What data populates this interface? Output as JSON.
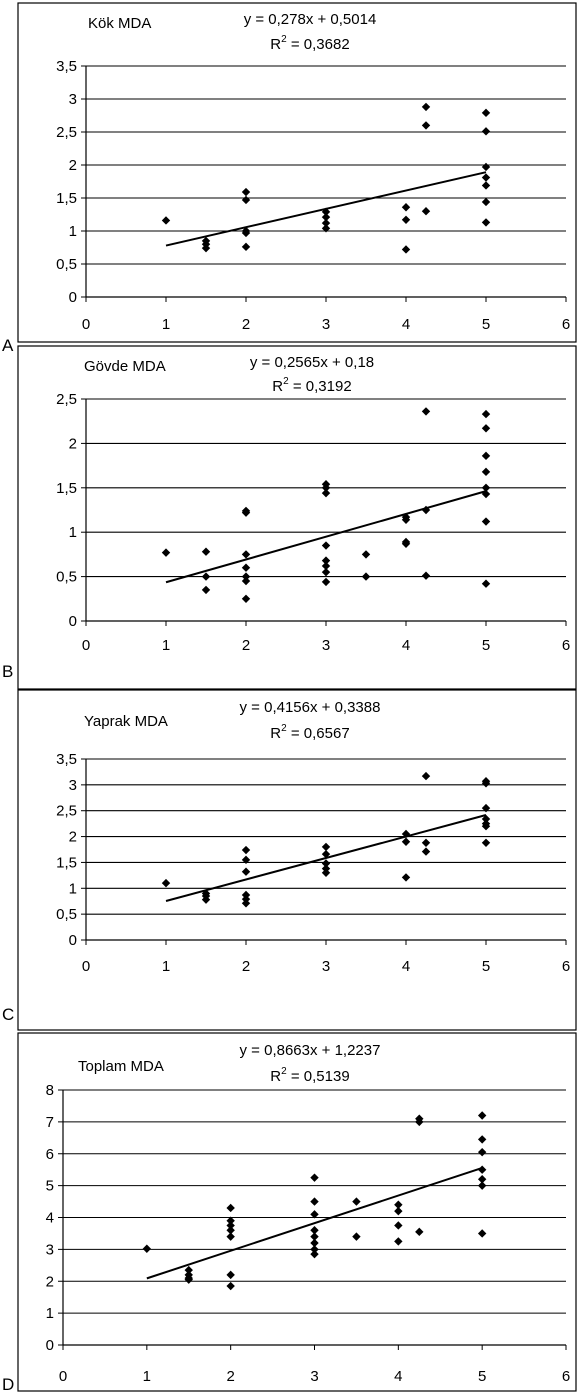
{
  "chart_data": [
    {
      "type": "scatter",
      "panel_label": "A",
      "title": "Kök MDA",
      "equation": "y = 0,278x + 0,5014",
      "r2_prefix": "R",
      "r2_value": " = 0,3682",
      "xlim": [
        0,
        6
      ],
      "ylim": [
        0,
        3.5
      ],
      "x_ticks": [
        0,
        1,
        2,
        3,
        4,
        5,
        6
      ],
      "x_tick_labels": [
        "0",
        "1",
        "2",
        "3",
        "4",
        "5",
        "6"
      ],
      "y_ticks": [
        0,
        0.5,
        1,
        1.5,
        2,
        2.5,
        3,
        3.5
      ],
      "y_tick_labels": [
        "0",
        "0,5",
        "1",
        "1,5",
        "2",
        "2,5",
        "3",
        "3,5"
      ],
      "grid": "horizontal",
      "trendline": {
        "slope": 0.278,
        "intercept": 0.5014,
        "x_range": [
          1,
          5
        ]
      },
      "points": [
        [
          1,
          1.16
        ],
        [
          1.5,
          0.85
        ],
        [
          1.5,
          0.8
        ],
        [
          1.5,
          0.74
        ],
        [
          2,
          1.59
        ],
        [
          2,
          1.47
        ],
        [
          2,
          1.0
        ],
        [
          2,
          0.97
        ],
        [
          2,
          0.76
        ],
        [
          3,
          1.29
        ],
        [
          3,
          1.21
        ],
        [
          3,
          1.12
        ],
        [
          3,
          1.04
        ],
        [
          4,
          1.36
        ],
        [
          4,
          1.17
        ],
        [
          4,
          0.72
        ],
        [
          4.25,
          2.88
        ],
        [
          4.25,
          2.6
        ],
        [
          4.25,
          1.3
        ],
        [
          5,
          2.79
        ],
        [
          5,
          2.51
        ],
        [
          5,
          1.97
        ],
        [
          5,
          1.81
        ],
        [
          5,
          1.69
        ],
        [
          5,
          1.44
        ],
        [
          5,
          1.13
        ]
      ]
    },
    {
      "type": "scatter",
      "panel_label": "B",
      "title": "Gövde MDA",
      "equation": "y = 0,2565x + 0,18",
      "r2_prefix": "R",
      "r2_value": " = 0,3192",
      "xlim": [
        0,
        6
      ],
      "ylim": [
        0,
        2.5
      ],
      "x_ticks": [
        0,
        1,
        2,
        3,
        4,
        5,
        6
      ],
      "x_tick_labels": [
        "0",
        "1",
        "2",
        "3",
        "4",
        "5",
        "6"
      ],
      "y_ticks": [
        0,
        0.5,
        1,
        1.5,
        2,
        2.5
      ],
      "y_tick_labels": [
        "0",
        "0,5",
        "1",
        "1,5",
        "2",
        "2,5"
      ],
      "grid": "horizontal",
      "trendline": {
        "slope": 0.2565,
        "intercept": 0.18,
        "x_range": [
          1,
          5
        ]
      },
      "points": [
        [
          1,
          0.77
        ],
        [
          1.5,
          0.78
        ],
        [
          1.5,
          0.5
        ],
        [
          1.5,
          0.35
        ],
        [
          2,
          1.24
        ],
        [
          2,
          1.22
        ],
        [
          2,
          0.75
        ],
        [
          2,
          0.6
        ],
        [
          2,
          0.5
        ],
        [
          2,
          0.45
        ],
        [
          2,
          0.25
        ],
        [
          3,
          1.54
        ],
        [
          3,
          1.5
        ],
        [
          3,
          1.44
        ],
        [
          3,
          0.85
        ],
        [
          3,
          0.68
        ],
        [
          3,
          0.62
        ],
        [
          3,
          0.55
        ],
        [
          3,
          0.44
        ],
        [
          3.5,
          0.75
        ],
        [
          3.5,
          0.5
        ],
        [
          4,
          1.17
        ],
        [
          4,
          1.14
        ],
        [
          4,
          0.89
        ],
        [
          4,
          0.87
        ],
        [
          4.25,
          2.36
        ],
        [
          4.25,
          1.25
        ],
        [
          4.25,
          0.51
        ],
        [
          5,
          2.33
        ],
        [
          5,
          2.17
        ],
        [
          5,
          1.86
        ],
        [
          5,
          1.68
        ],
        [
          5,
          1.5
        ],
        [
          5,
          1.43
        ],
        [
          5,
          1.12
        ],
        [
          5,
          0.42
        ]
      ]
    },
    {
      "type": "scatter",
      "panel_label": "C",
      "title": "Yaprak MDA",
      "equation": "y = 0,4156x + 0,3388",
      "r2_prefix": "R",
      "r2_value": " = 0,6567",
      "xlim": [
        0,
        6
      ],
      "ylim": [
        0,
        3.5
      ],
      "x_ticks": [
        0,
        1,
        2,
        3,
        4,
        5,
        6
      ],
      "x_tick_labels": [
        "0",
        "1",
        "2",
        "3",
        "4",
        "5",
        "6"
      ],
      "y_ticks": [
        0,
        0.5,
        1,
        1.5,
        2,
        2.5,
        3,
        3.5
      ],
      "y_tick_labels": [
        "0",
        "0,5",
        "1",
        "1,5",
        "2",
        "2,5",
        "3",
        "3,5"
      ],
      "grid": "horizontal",
      "trendline": {
        "slope": 0.4156,
        "intercept": 0.3388,
        "x_range": [
          1,
          5
        ]
      },
      "points": [
        [
          1,
          1.1
        ],
        [
          1.5,
          0.9
        ],
        [
          1.5,
          0.85
        ],
        [
          1.5,
          0.78
        ],
        [
          2,
          1.74
        ],
        [
          2,
          1.55
        ],
        [
          2,
          1.32
        ],
        [
          2,
          0.87
        ],
        [
          2,
          0.79
        ],
        [
          2,
          0.71
        ],
        [
          3,
          1.8
        ],
        [
          3,
          1.66
        ],
        [
          3,
          1.48
        ],
        [
          3,
          1.38
        ],
        [
          3,
          1.3
        ],
        [
          4,
          2.05
        ],
        [
          4,
          1.9
        ],
        [
          4,
          1.21
        ],
        [
          4.25,
          3.17
        ],
        [
          4.25,
          1.88
        ],
        [
          4.25,
          1.71
        ],
        [
          5,
          3.07
        ],
        [
          5,
          3.03
        ],
        [
          5,
          2.55
        ],
        [
          5,
          2.34
        ],
        [
          5,
          2.25
        ],
        [
          5,
          2.2
        ],
        [
          5,
          1.88
        ]
      ]
    },
    {
      "type": "scatter",
      "panel_label": "D",
      "title": "Toplam MDA",
      "equation": "y = 0,8663x + 1,2237",
      "r2_prefix": "R",
      "r2_value": " = 0,5139",
      "xlim": [
        0,
        6
      ],
      "ylim": [
        0,
        8
      ],
      "x_ticks": [
        0,
        1,
        2,
        3,
        4,
        5,
        6
      ],
      "x_tick_labels": [
        "0",
        "1",
        "2",
        "3",
        "4",
        "5",
        "6"
      ],
      "y_ticks": [
        0,
        1,
        2,
        3,
        4,
        5,
        6,
        7,
        8
      ],
      "y_tick_labels": [
        "0",
        "1",
        "2",
        "3",
        "4",
        "5",
        "6",
        "7",
        "8"
      ],
      "grid": "horizontal",
      "trendline": {
        "slope": 0.8663,
        "intercept": 1.2237,
        "x_range": [
          1,
          5
        ]
      },
      "points": [
        [
          1,
          3.02
        ],
        [
          1.5,
          2.35
        ],
        [
          1.5,
          2.2
        ],
        [
          1.5,
          2.1
        ],
        [
          1.5,
          2.05
        ],
        [
          2,
          4.3
        ],
        [
          2,
          3.9
        ],
        [
          2,
          3.75
        ],
        [
          2,
          3.6
        ],
        [
          2,
          3.4
        ],
        [
          2,
          2.2
        ],
        [
          2,
          1.85
        ],
        [
          3,
          5.25
        ],
        [
          3,
          4.5
        ],
        [
          3,
          4.1
        ],
        [
          3,
          3.6
        ],
        [
          3,
          3.4
        ],
        [
          3,
          3.2
        ],
        [
          3,
          3.0
        ],
        [
          3,
          2.85
        ],
        [
          3.5,
          4.5
        ],
        [
          3.5,
          3.4
        ],
        [
          4,
          4.4
        ],
        [
          4,
          4.2
        ],
        [
          4,
          3.75
        ],
        [
          4,
          3.25
        ],
        [
          4.25,
          7.1
        ],
        [
          4.25,
          7.0
        ],
        [
          4.25,
          3.55
        ],
        [
          5,
          7.2
        ],
        [
          5,
          6.45
        ],
        [
          5,
          6.05
        ],
        [
          5,
          5.5
        ],
        [
          5,
          5.2
        ],
        [
          5,
          5.0
        ],
        [
          5,
          3.5
        ]
      ]
    }
  ]
}
